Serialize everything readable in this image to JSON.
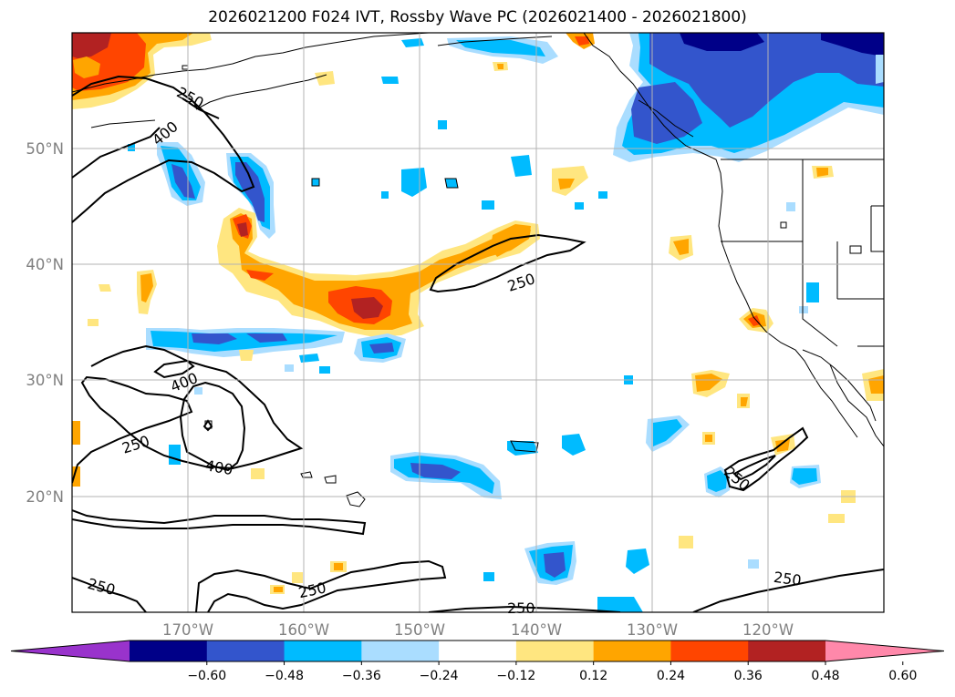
{
  "title": "2026021200 F024 IVT, Rossby Wave PC (2026021400 - 2026021800)",
  "latitude_labels": [
    "50°N",
    "40°N",
    "30°N",
    "20°N"
  ],
  "longitude_labels": [
    "170°W",
    "160°W",
    "150°W",
    "140°W",
    "130°W",
    "120°W"
  ],
  "contour_labels": [
    "250",
    "400",
    "400",
    "250",
    "400",
    "250",
    "250",
    "250",
    "250",
    "250"
  ],
  "colorbar": {
    "ticks": [
      "−0.60",
      "−0.48",
      "−0.36",
      "−0.24",
      "−0.12",
      "0.12",
      "0.24",
      "0.36",
      "0.48",
      "0.60"
    ],
    "colors": [
      "#9933cc",
      "#000088",
      "#3355cc",
      "#00bbff",
      "#aaddff",
      "#ffffff",
      "#ffe680",
      "#ffa500",
      "#ff4500",
      "#b22222",
      "#ff88aa"
    ]
  },
  "colors": {
    "coast": "#000000",
    "grid": "#b3b3b3"
  }
}
